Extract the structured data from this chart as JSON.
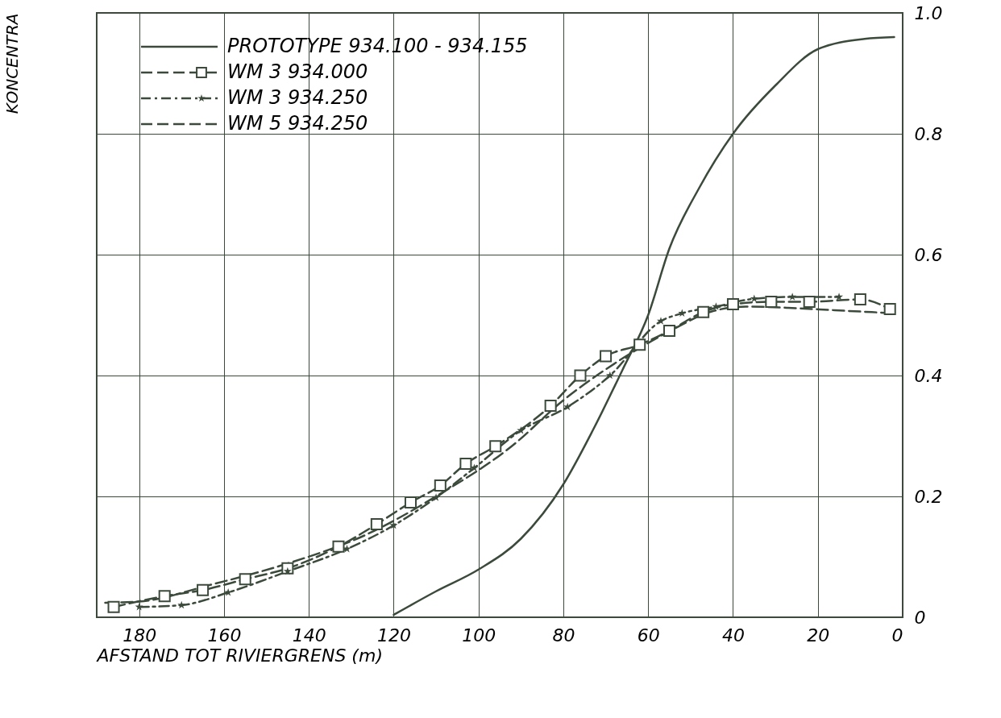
{
  "chart_data": {
    "type": "line",
    "xlabel": "AFSTAND TOT RIVIERGRENS (m)",
    "ylabel": "KONCENTRA",
    "xlim": [
      190,
      0
    ],
    "xticks": [
      180,
      160,
      140,
      120,
      100,
      80,
      60,
      40,
      20,
      0
    ],
    "ylim": [
      0,
      1.0
    ],
    "yticks": [
      0,
      0.2,
      0.4,
      0.6,
      0.8,
      {
        "value": 1.0,
        "label": "1.0"
      }
    ],
    "grid": true,
    "legend": "top left",
    "series": [
      {
        "name": "PROTOTYPE 934.100 - 934.155",
        "color": "#3c4a3c",
        "marker": "none",
        "line_style": "solid",
        "x": [
          120,
          110,
          100,
          90,
          80,
          73,
          66,
          60,
          55,
          48,
          40,
          30,
          20,
          9,
          2
        ],
        "values": [
          0.004,
          0.043,
          0.079,
          0.13,
          0.22,
          0.31,
          0.41,
          0.5,
          0.61,
          0.71,
          0.8,
          0.88,
          0.94,
          0.957,
          0.96
        ]
      },
      {
        "name": "WM 3         934.000",
        "color": "#3c4a3c",
        "marker": "square",
        "line_style": "dashed",
        "x": [
          186,
          174,
          165,
          155,
          145,
          133,
          124,
          116,
          109,
          103,
          96,
          83,
          76,
          70,
          62,
          55,
          47,
          40,
          31,
          22,
          10,
          3
        ],
        "values": [
          0.017,
          0.035,
          0.045,
          0.063,
          0.081,
          0.117,
          0.154,
          0.19,
          0.218,
          0.254,
          0.283,
          0.35,
          0.4,
          0.432,
          0.451,
          0.474,
          0.505,
          0.518,
          0.522,
          0.522,
          0.526,
          0.51
        ]
      },
      {
        "name": "WM 3         934.250",
        "color": "#3c4a3c",
        "marker": "star",
        "line_style": "dashdot",
        "x": [
          180,
          170,
          159,
          145,
          131,
          120,
          110,
          101,
          90,
          79,
          69,
          57,
          52,
          44,
          35,
          26,
          15
        ],
        "values": [
          0.017,
          0.02,
          0.041,
          0.076,
          0.113,
          0.152,
          0.198,
          0.247,
          0.309,
          0.348,
          0.4,
          0.49,
          0.503,
          0.514,
          0.527,
          0.53,
          0.53
        ]
      },
      {
        "name": "WM 5         934.250",
        "color": "#3c4a3c",
        "marker": "none",
        "line_style": "dashed",
        "x": [
          188,
          180,
          163,
          145,
          127,
          110,
          92,
          80,
          67,
          55,
          45,
          37,
          27,
          16,
          2
        ],
        "values": [
          0.024,
          0.026,
          0.054,
          0.089,
          0.135,
          0.2,
          0.284,
          0.359,
          0.424,
          0.473,
          0.506,
          0.514,
          0.512,
          0.508,
          0.503
        ]
      }
    ]
  }
}
